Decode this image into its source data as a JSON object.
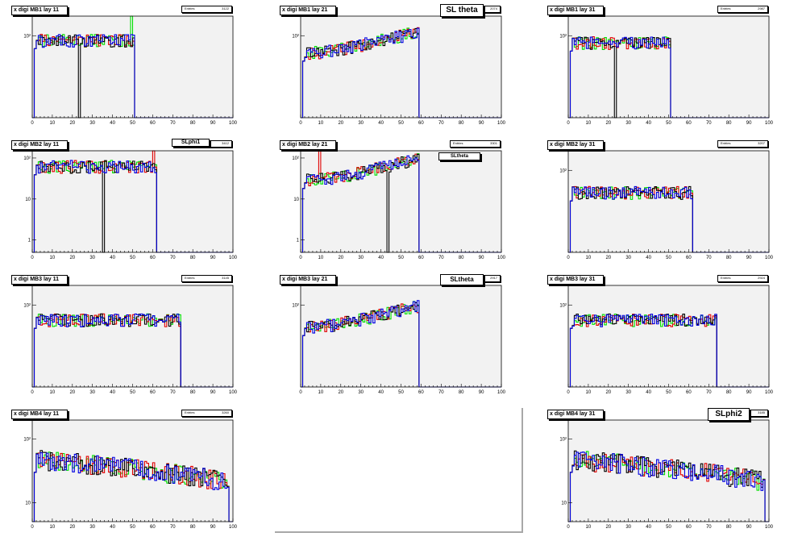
{
  "pads": [
    {
      "title": "x digi MB1 lay 11",
      "stats_label": "Entries",
      "stats_value": "3122",
      "ymin": 1,
      "ymax": 300,
      "ylabels": [
        "10²"
      ],
      "last_bin": 50,
      "overlay": "",
      "base": 80,
      "shape": "flat",
      "spike_green": 50,
      "dip_black": 23
    },
    {
      "title": "x digi MB1 lay 21",
      "stats_label": "Entries",
      "stats_value": "2074",
      "ymin": 1,
      "ymax": 300,
      "ylabels": [
        "10²"
      ],
      "last_bin": 58,
      "overlay": "SL theta",
      "base": 40,
      "shape": "rise",
      "spike_green": -1,
      "dip_black": -1
    },
    {
      "title": "x digi MB1 lay 31",
      "stats_label": "Entries",
      "stats_value": "2987",
      "ymin": 1,
      "ymax": 300,
      "ylabels": [
        "10²"
      ],
      "last_bin": 50,
      "overlay": "",
      "base": 70,
      "shape": "flat",
      "spike_green": -1,
      "dip_black": 23
    },
    {
      "title": "x digi MB2 lay 11",
      "stats_label": "Entries",
      "stats_value": "3412",
      "ymin": 0.5,
      "ymax": 150,
      "ylabels": [
        "10²",
        "10",
        "1"
      ],
      "last_bin": 61,
      "overlay": "SLphi1",
      "base": 65,
      "shape": "flat",
      "spike_green": -1,
      "dip_black": 35
    },
    {
      "title": "x digi MB2 lay 21",
      "stats_label": "Entries",
      "stats_value": "3301",
      "ymin": 0.5,
      "ymax": 150,
      "ylabels": [
        "10²",
        "10",
        "1"
      ],
      "last_bin": 58,
      "overlay": "SLtheta",
      "base": 30,
      "shape": "rise",
      "spike_green": -1,
      "dip_black": 43
    },
    {
      "title": "x digi MB2 lay 31",
      "stats_label": "Entries",
      "stats_value": "3207",
      "ymin": 1,
      "ymax": 300,
      "ylabels": [
        "10²"
      ],
      "last_bin": 61,
      "overlay": "",
      "base": 30,
      "shape": "flat",
      "spike_green": -1,
      "dip_black": -1
    },
    {
      "title": "x digi MB3 lay 11",
      "stats_label": "Entries",
      "stats_value": "3145",
      "ymin": 1,
      "ymax": 300,
      "ylabels": [
        "10²"
      ],
      "last_bin": 73,
      "overlay": "",
      "base": 45,
      "shape": "flat",
      "spike_green": -1,
      "dip_black": -1
    },
    {
      "title": "x digi MB3 lay 21",
      "stats_label": "Entries",
      "stats_value": "2917",
      "ymin": 1,
      "ymax": 300,
      "ylabels": [
        "10²"
      ],
      "last_bin": 58,
      "overlay": "SLtheta",
      "base": 30,
      "shape": "rise",
      "spike_green": -1,
      "dip_black": -1
    },
    {
      "title": "x digi MB3 lay 31",
      "stats_label": "Entries",
      "stats_value": "2924",
      "ymin": 1,
      "ymax": 300,
      "ylabels": [
        "10²"
      ],
      "last_bin": 73,
      "overlay": "",
      "base": 45,
      "shape": "flat",
      "spike_green": -1,
      "dip_black": -1
    },
    {
      "title": "x digi MB4 lay 11",
      "stats_label": "Entries",
      "stats_value": "3260",
      "ymin": 5,
      "ymax": 200,
      "ylabels": [
        "10²",
        "10"
      ],
      "last_bin": 97,
      "overlay": "",
      "base": 50,
      "shape": "fall",
      "spike_green": -1,
      "dip_black": -1
    },
    null,
    {
      "title": "x digi MB4 lay 31",
      "stats_label": "Entries",
      "stats_value": "3185",
      "ymin": 5,
      "ymax": 200,
      "ylabels": [
        "10²",
        "10"
      ],
      "last_bin": 97,
      "overlay": "SLphi2",
      "base": 50,
      "shape": "fall",
      "spike_green": -1,
      "dip_black": -1
    }
  ],
  "xticks": [
    "0",
    "10",
    "20",
    "30",
    "40",
    "50",
    "60",
    "70",
    "80",
    "90",
    "100"
  ],
  "colors": {
    "black": "#000000",
    "red": "#e00000",
    "green": "#00e000",
    "blue": "#0000e0",
    "pad_bg": "#f2f2f2"
  }
}
